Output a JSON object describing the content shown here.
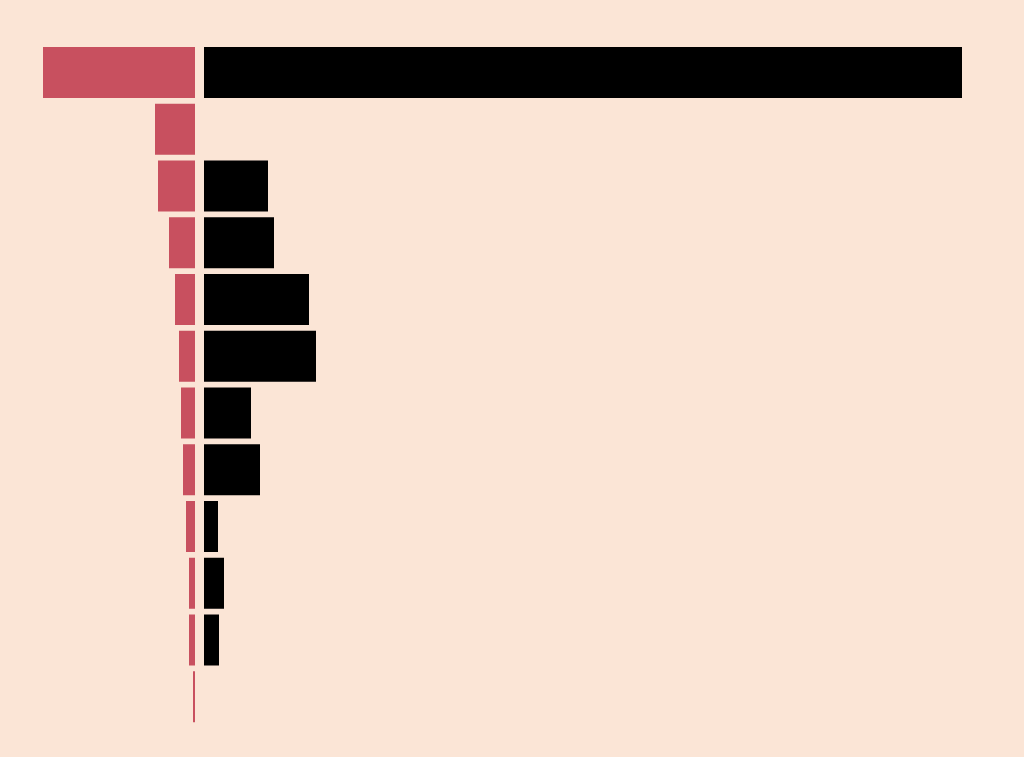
{
  "chart_data": {
    "type": "bar",
    "orientation": "horizontal-diverging",
    "categories": [
      null,
      null,
      null,
      null,
      null,
      null,
      null,
      null,
      null,
      null,
      null,
      null
    ],
    "series": [
      {
        "color": "#c8505f",
        "values": [
          152,
          40,
          37,
          26,
          20,
          16,
          14,
          12,
          9,
          6,
          6,
          2
        ]
      },
      {
        "color": "#000000",
        "values": [
          758,
          0,
          64,
          70,
          105,
          112,
          47,
          56,
          14,
          20,
          15,
          0
        ]
      }
    ],
    "xlim": [
      0,
      758
    ]
  }
}
